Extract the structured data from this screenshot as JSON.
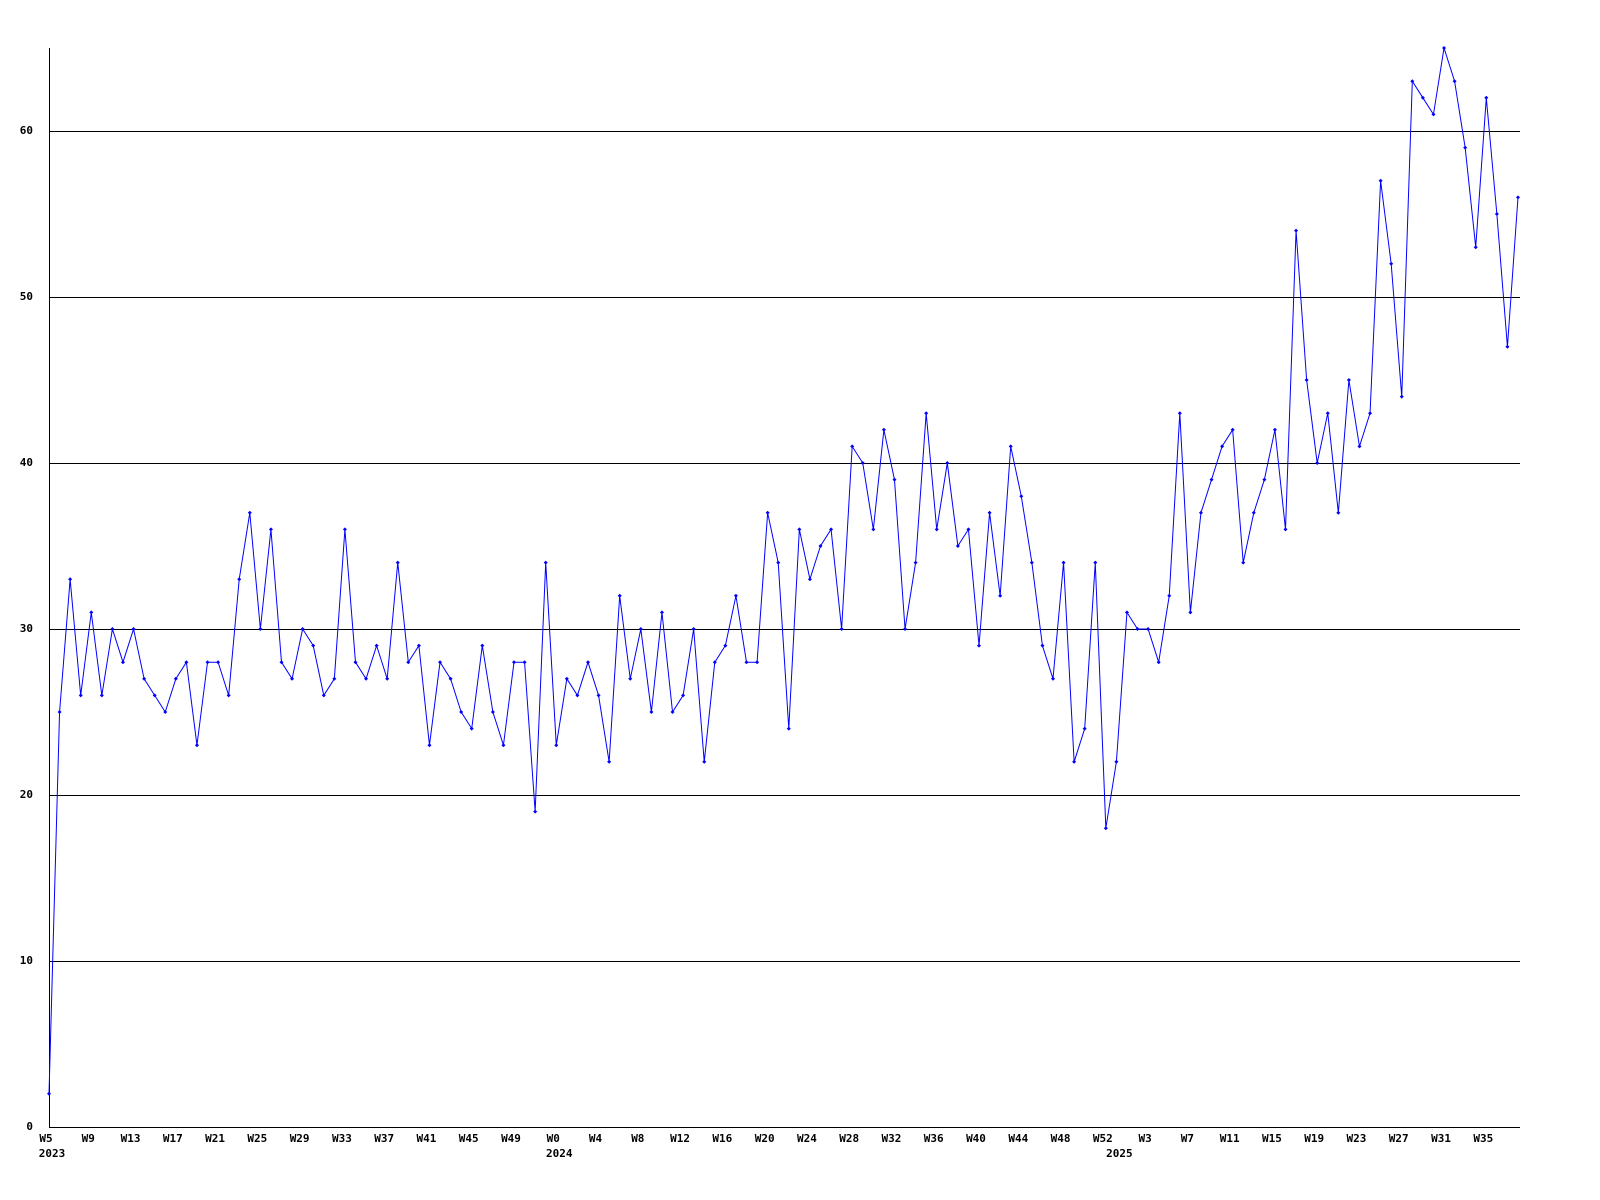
{
  "chart_data": {
    "type": "line",
    "categories": [
      "W5",
      null,
      null,
      null,
      "W9",
      null,
      null,
      null,
      "W13",
      null,
      null,
      null,
      "W17",
      null,
      null,
      null,
      "W21",
      null,
      null,
      null,
      "W25",
      null,
      null,
      null,
      "W29",
      null,
      null,
      null,
      "W33",
      null,
      null,
      null,
      "W37",
      null,
      null,
      null,
      "W41",
      null,
      null,
      null,
      "W45",
      null,
      null,
      null,
      "W49",
      null,
      null,
      null,
      "W0",
      null,
      null,
      null,
      "W4",
      null,
      null,
      null,
      "W8",
      null,
      null,
      null,
      "W12",
      null,
      null,
      null,
      "W16",
      null,
      null,
      null,
      "W20",
      null,
      null,
      null,
      "W24",
      null,
      null,
      null,
      "W28",
      null,
      null,
      null,
      "W32",
      null,
      null,
      null,
      "W36",
      null,
      null,
      null,
      "W40",
      null,
      null,
      null,
      "W44",
      null,
      null,
      null,
      "W48",
      null,
      null,
      null,
      "W52",
      null,
      null,
      null,
      "W3",
      null,
      null,
      null,
      "W7",
      null,
      null,
      null,
      "W11",
      null,
      null,
      null,
      "W15",
      null,
      null,
      null,
      "W19",
      null,
      null,
      null,
      "W23",
      null,
      null,
      null,
      "W27",
      null,
      null,
      null,
      "W31",
      null,
      null,
      null,
      "W35",
      null,
      null,
      null
    ],
    "years": [
      "2023",
      null,
      null,
      null,
      null,
      null,
      null,
      null,
      null,
      null,
      null,
      null,
      null,
      null,
      null,
      null,
      null,
      null,
      null,
      null,
      null,
      null,
      null,
      null,
      null,
      null,
      null,
      null,
      null,
      null,
      null,
      null,
      null,
      null,
      null,
      null,
      null,
      null,
      null,
      null,
      null,
      null,
      null,
      null,
      null,
      null,
      null,
      null,
      "2024",
      null,
      null,
      null,
      null,
      null,
      null,
      null,
      null,
      null,
      null,
      null,
      null,
      null,
      null,
      null,
      null,
      null,
      null,
      null,
      null,
      null,
      null,
      null,
      null,
      null,
      null,
      null,
      null,
      null,
      null,
      null,
      null,
      null,
      null,
      null,
      null,
      null,
      null,
      null,
      null,
      null,
      null,
      null,
      null,
      null,
      null,
      null,
      null,
      null,
      null,
      null,
      null,
      "2025",
      null,
      null,
      null,
      null,
      null,
      null,
      null,
      null,
      null,
      null,
      null,
      null,
      null,
      null,
      null,
      null,
      null,
      null,
      null,
      null,
      null,
      null,
      null,
      null,
      null,
      null,
      null,
      null,
      null,
      null,
      null,
      null,
      null,
      null,
      null,
      null,
      null,
      null
    ],
    "values": [
      2,
      25,
      33,
      26,
      31,
      26,
      30,
      28,
      30,
      27,
      26,
      25,
      27,
      28,
      23,
      28,
      28,
      26,
      33,
      37,
      30,
      36,
      28,
      27,
      30,
      29,
      26,
      27,
      36,
      28,
      27,
      29,
      27,
      34,
      28,
      29,
      23,
      28,
      27,
      25,
      24,
      29,
      25,
      23,
      28,
      28,
      19,
      34,
      23,
      27,
      26,
      28,
      26,
      22,
      32,
      27,
      30,
      25,
      31,
      25,
      26,
      30,
      22,
      28,
      29,
      32,
      28,
      28,
      37,
      34,
      24,
      36,
      33,
      35,
      36,
      30,
      41,
      40,
      36,
      42,
      39,
      30,
      34,
      43,
      36,
      40,
      35,
      36,
      29,
      37,
      32,
      41,
      38,
      34,
      29,
      27,
      34,
      22,
      24,
      34,
      18,
      22,
      31,
      30,
      30,
      28,
      32,
      43,
      31,
      37,
      39,
      41,
      42,
      34,
      37,
      39,
      42,
      36,
      54,
      45,
      40,
      43,
      37,
      45,
      41,
      43,
      57,
      52,
      44,
      63,
      62,
      61,
      65,
      63,
      59,
      53,
      62,
      55,
      47,
      56
    ],
    "color": "#0000ff",
    "ylim": [
      0,
      65
    ],
    "yticks": [
      0,
      10,
      20,
      30,
      40,
      50,
      60
    ],
    "grid": true
  }
}
